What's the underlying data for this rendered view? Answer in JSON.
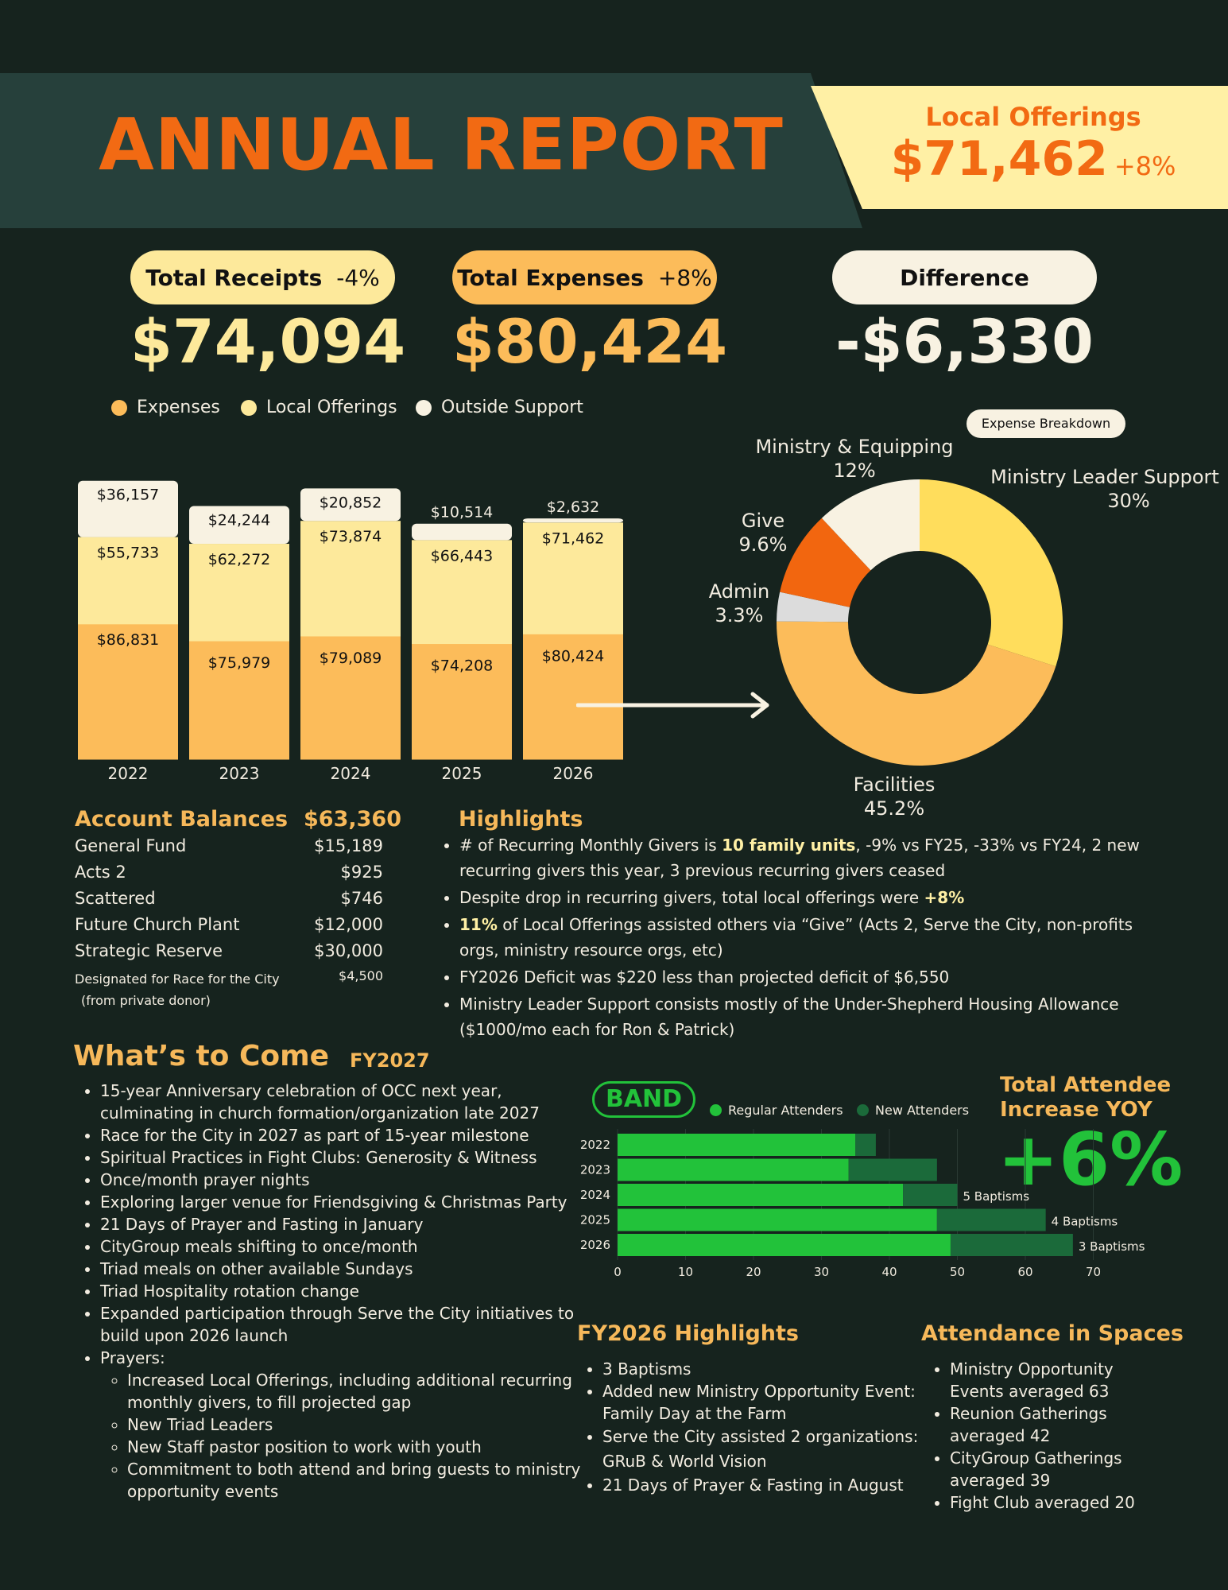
{
  "header": {
    "title": "ANNUAL REPORT",
    "local_offerings_label": "Local Offerings",
    "local_offerings_value": "$71,462",
    "local_offerings_change": "+8%"
  },
  "summary": {
    "receipts_label": "Total Receipts",
    "receipts_change": "-4%",
    "receipts_value": "$74,094",
    "expenses_label": "Total Expenses",
    "expenses_change": "+8%",
    "expenses_value": "$80,424",
    "difference_label": "Difference",
    "difference_value": "-$6,330"
  },
  "legend": {
    "expenses": "Expenses",
    "local_offerings": "Local Offerings",
    "outside_support": "Outside Support"
  },
  "colors": {
    "expenses": "#fcbc5a",
    "local_offerings": "#fde99b",
    "outside_support": "#f8f2e2",
    "accent": "#f26a13",
    "green": "#22c23a",
    "dark_green": "#1b6a3a"
  },
  "chart_data": [
    {
      "type": "bar",
      "stacked": true,
      "categories": [
        "2022",
        "2023",
        "2024",
        "2025",
        "2026"
      ],
      "series": [
        {
          "name": "Expenses",
          "values": [
            86831,
            75979,
            79089,
            74208,
            80424
          ],
          "labels": [
            "$86,831",
            "$75,979",
            "$79,089",
            "$74,208",
            "$80,424"
          ]
        },
        {
          "name": "Local Offerings",
          "values": [
            55733,
            62272,
            73874,
            66443,
            71462
          ],
          "labels": [
            "$55,733",
            "$62,272",
            "$73,874",
            "$66,443",
            "$71,462"
          ]
        },
        {
          "name": "Outside Support",
          "values": [
            36157,
            24244,
            20852,
            10514,
            2632
          ],
          "labels": [
            "$36,157",
            "$24,244",
            "$20,852",
            "$10,514",
            "$2,632"
          ]
        }
      ],
      "legend_position": "top"
    },
    {
      "type": "pie",
      "donut": true,
      "title": "Expense Breakdown",
      "slices": [
        {
          "label": "Ministry Leader Support",
          "pct_label": "30%",
          "value": 30,
          "color": "#ffdd5c"
        },
        {
          "label": "Facilities",
          "pct_label": "45.2%",
          "value": 45.2,
          "color": "#fcbc5a"
        },
        {
          "label": "Admin",
          "pct_label": "3.3%",
          "value": 3.3,
          "color": "#dcdcdc"
        },
        {
          "label": "Give",
          "pct_label": "9.6%",
          "value": 9.6,
          "color": "#f2660f"
        },
        {
          "label": "Ministry & Equipping",
          "pct_label": "12%",
          "value": 12,
          "color": "#f8f2e2"
        }
      ]
    },
    {
      "type": "bar",
      "orientation": "horizontal",
      "stacked": true,
      "categories": [
        "2022",
        "2023",
        "2024",
        "2025",
        "2026"
      ],
      "series": [
        {
          "name": "Regular Attenders",
          "values": [
            35,
            34,
            42,
            47,
            49
          ]
        },
        {
          "name": "New Attenders",
          "values": [
            3,
            13,
            8,
            16,
            18
          ]
        }
      ],
      "annotations": [
        "",
        "",
        "5 Baptisms",
        "4 Baptisms",
        "3 Baptisms"
      ],
      "xlim": [
        0,
        70
      ],
      "xticks": [
        "0",
        "10",
        "20",
        "30",
        "40",
        "50",
        "60",
        "70"
      ],
      "legend_position": "top"
    }
  ],
  "account_balances": {
    "title": "Account Balances",
    "total": "$63,360",
    "rows": [
      {
        "name": "General Fund",
        "value": "$15,189"
      },
      {
        "name": "Acts 2",
        "value": "$925"
      },
      {
        "name": "Scattered",
        "value": "$746"
      },
      {
        "name": "Future Church Plant",
        "value": "$12,000"
      },
      {
        "name": "Strategic Reserve",
        "value": "$30,000"
      }
    ],
    "designated_line1": "Designated for Race for the City",
    "designated_line2": "(from private donor)",
    "designated_value": "$4,500"
  },
  "highlights": {
    "title": "Highlights",
    "b1_pre": "# of Recurring Monthly Givers is ",
    "b1_bold": "10 family units",
    "b1_post": ", -9% vs FY25, -33% vs FY24, 2 new recurring givers this year, 3 previous recurring givers ceased",
    "b2_pre": "Despite drop in recurring givers, total local offerings were ",
    "b2_bold": "+8%",
    "b3_bold": "11%",
    "b3_post": " of Local Offerings assisted others via “Give” (Acts 2, Serve the City, non-profits orgs, ministry resource orgs, etc)",
    "b4": "FY2026 Deficit was $220 less than projected deficit of $6,550",
    "b5": "Ministry Leader Support consists mostly of the Under-Shepherd Housing Allowance ($1000/mo each for Ron & Patrick)"
  },
  "whats_to_come": {
    "title": "What’s to Come",
    "year": "FY2027",
    "items": [
      "15-year Anniversary celebration of OCC next year, culminating in church formation/organization late 2027",
      "Race for the City in 2027 as part of 15-year milestone",
      "Spiritual Practices in Fight Clubs: Generosity & Witness",
      "Once/month prayer nights",
      "Exploring larger venue for Friendsgiving & Christmas Party",
      "21 Days of Prayer and Fasting in January",
      "CityGroup meals shifting to once/month",
      "Triad meals on other available Sundays",
      "Triad Hospitality rotation change",
      "Expanded participation through Serve the City initiatives to build upon 2026 launch"
    ],
    "prayers_label": "Prayers:",
    "prayers": [
      "Increased Local Offerings, including additional recurring monthly givers, to fill projected gap",
      "New Triad Leaders",
      "New Staff pastor position to work with youth",
      "Commitment to both attend and bring guests to ministry opportunity events"
    ]
  },
  "attendance": {
    "band_label": "BAND",
    "legend_regular": "Regular Attenders",
    "legend_new": "New Attenders",
    "increase_label_line1": "Total Attendee",
    "increase_label_line2": "Increase YOY",
    "increase_value": "+6%"
  },
  "fy2026": {
    "title": "FY2026 Highlights",
    "items": [
      "3 Baptisms",
      "Added new Ministry Opportunity Event: Family Day at the Farm",
      "Serve the City assisted 2 organizations: GRuB & World Vision",
      "21 Days of Prayer & Fasting in August"
    ]
  },
  "spaces": {
    "title": "Attendance in Spaces",
    "items": [
      "Ministry Opportunity Events averaged 63",
      "Reunion Gatherings averaged 42",
      "CityGroup Gatherings averaged 39",
      "Fight Club averaged 20"
    ]
  }
}
